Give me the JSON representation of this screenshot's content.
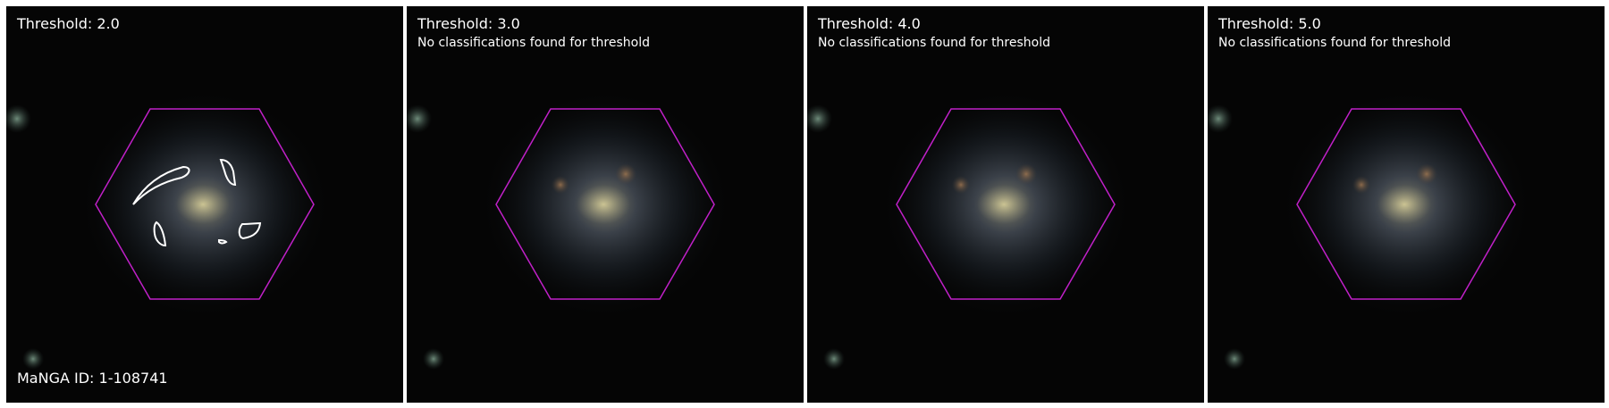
{
  "figure": {
    "panels": [
      {
        "threshold_label": "Threshold: 2.0",
        "note": "",
        "id_label": "MaNGA ID: 1-108741"
      },
      {
        "threshold_label": "Threshold: 3.0",
        "note": "No classifications found for threshold",
        "id_label": ""
      },
      {
        "threshold_label": "Threshold: 4.0",
        "note": "No classifications found for threshold",
        "id_label": ""
      },
      {
        "threshold_label": "Threshold: 5.0",
        "note": "No classifications found for threshold",
        "id_label": ""
      }
    ]
  },
  "colors": {
    "hexagon": "#c020c8",
    "contour": "#ffffff",
    "sky": "#050505"
  }
}
